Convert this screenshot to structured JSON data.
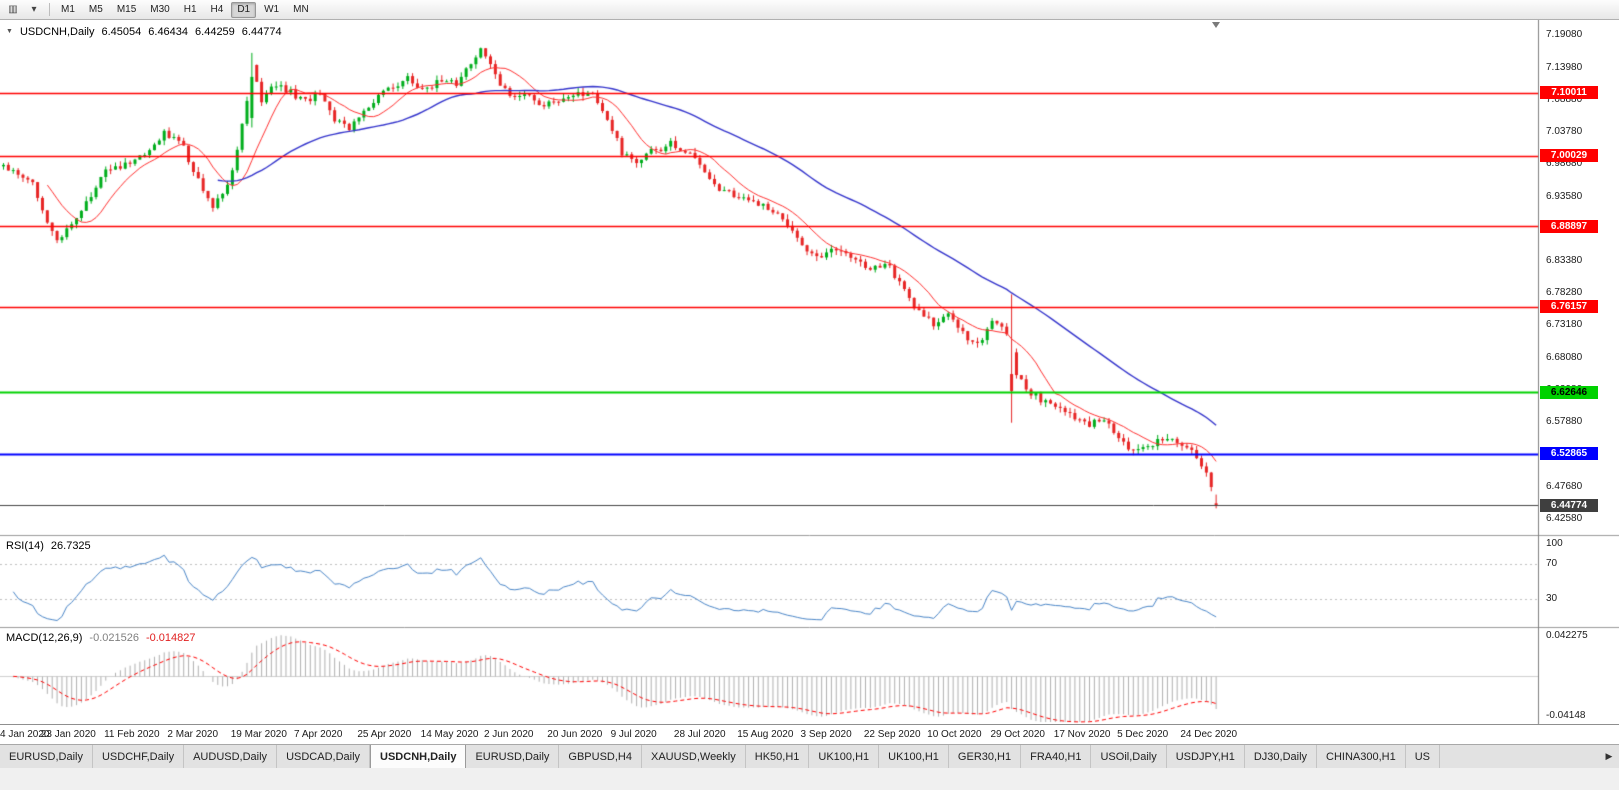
{
  "toolbar": {
    "icons": [
      {
        "name": "chart-window-icon",
        "glyph": "▥"
      },
      {
        "name": "dropdown-caret-icon",
        "glyph": "▾"
      }
    ],
    "timeframes": [
      "M1",
      "M5",
      "M15",
      "M30",
      "H1",
      "H4",
      "D1",
      "W1",
      "MN"
    ],
    "active_timeframe": "D1"
  },
  "chart_header": {
    "collapse_icon": "▼",
    "symbol": "USDCNH,Daily",
    "open": "6.45054",
    "high": "6.46434",
    "low": "6.44259",
    "close": "6.44774"
  },
  "levels": [
    {
      "value": "7.10011",
      "price": 7.10011,
      "color": "#ff0000",
      "text_color": "#ffffff"
    },
    {
      "value": "7.00029",
      "price": 7.00029,
      "color": "#ff0000",
      "text_color": "#ffffff"
    },
    {
      "value": "6.88897",
      "price": 6.88897,
      "color": "#ff0000",
      "text_color": "#ffffff"
    },
    {
      "value": "6.76157",
      "price": 6.76157,
      "color": "#ff0000",
      "text_color": "#ffffff"
    },
    {
      "value": "6.62646",
      "price": 6.62646,
      "color": "#00d200",
      "text_color": "#000000"
    },
    {
      "value": "6.52865",
      "price": 6.52865,
      "color": "#0000ff",
      "text_color": "#ffffff"
    }
  ],
  "current_price": {
    "value": "6.44774",
    "price": 6.44774,
    "bg": "#3f3f3f",
    "text_color": "#ffffff"
  },
  "price_scale": {
    "ticks": [
      "7.19080",
      "7.13980",
      "7.08880",
      "7.03780",
      "6.98680",
      "6.93580",
      "6.88480",
      "6.83380",
      "6.78280",
      "6.73180",
      "6.68080",
      "6.62980",
      "6.57880",
      "6.52780",
      "6.47680",
      "6.42580"
    ]
  },
  "rsi": {
    "name": "RSI(14)",
    "value": "26.7325",
    "levels": [
      {
        "label": "100",
        "v": 100
      },
      {
        "label": "70",
        "v": 70
      },
      {
        "label": "30",
        "v": 30
      }
    ],
    "line_color": "#4a86c8"
  },
  "macd": {
    "name": "MACD(12,26,9)",
    "main_value": "-0.021526",
    "signal_value": "-0.014827",
    "scale_top": "0.042275",
    "scale_bottom": "-0.04148",
    "histogram_color": "#b0b0b0",
    "signal_color": "#ff0000"
  },
  "date_axis": {
    "labels": [
      "4 Jan 2020",
      "23 Jan 2020",
      "11 Feb 2020",
      "2 Mar 2020",
      "19 Mar 2020",
      "7 Apr 2020",
      "25 Apr 2020",
      "14 May 2020",
      "2 Jun 2020",
      "20 Jun 2020",
      "9 Jul 2020",
      "28 Jul 2020",
      "15 Aug 2020",
      "3 Sep 2020",
      "22 Sep 2020",
      "10 Oct 2020",
      "29 Oct 2020",
      "17 Nov 2020",
      "5 Dec 2020",
      "24 Dec 2020"
    ],
    "bars_per_label": 13
  },
  "tabs": {
    "items": [
      "EURUSD,Daily",
      "USDCHF,Daily",
      "AUDUSD,Daily",
      "USDCAD,Daily",
      "USDCNH,Daily",
      "EURUSD,Daily",
      "GBPUSD,H4",
      "XAUUSD,Weekly",
      "HK50,H1",
      "UK100,H1",
      "UK100,H1",
      "GER30,H1",
      "FRA40,H1",
      "USOil,Daily",
      "USDJPY,H1",
      "DJ30,Daily",
      "CHINA300,H1",
      "US"
    ],
    "active_index": 4,
    "scroll_icon": "▶"
  },
  "chart_data": {
    "type": "candlestick",
    "symbol": "USDCNH",
    "timeframe": "Daily",
    "title": "USDCNH,Daily",
    "bars": 250,
    "ylim": [
      6.402,
      7.215
    ],
    "up_color": "#00ae1c",
    "down_color": "#e72525",
    "sma_fast_color": "#ff3030",
    "sma_slow_color": "#3434cc",
    "anchors": [
      [
        0,
        6.985
      ],
      [
        6,
        6.955
      ],
      [
        11,
        6.862
      ],
      [
        15,
        6.905
      ],
      [
        21,
        6.975
      ],
      [
        26,
        6.988
      ],
      [
        31,
        7.015
      ],
      [
        33,
        7.038
      ],
      [
        37,
        7.012
      ],
      [
        40,
        6.962
      ],
      [
        43,
        6.918
      ],
      [
        46,
        6.955
      ],
      [
        48,
        7.005
      ],
      [
        50,
        7.09
      ],
      [
        51,
        7.14
      ],
      [
        53,
        7.09
      ],
      [
        55,
        7.115
      ],
      [
        59,
        7.1
      ],
      [
        62,
        7.085
      ],
      [
        65,
        7.098
      ],
      [
        68,
        7.06
      ],
      [
        71,
        7.045
      ],
      [
        74,
        7.075
      ],
      [
        77,
        7.095
      ],
      [
        80,
        7.11
      ],
      [
        83,
        7.126
      ],
      [
        86,
        7.105
      ],
      [
        90,
        7.12
      ],
      [
        93,
        7.115
      ],
      [
        96,
        7.148
      ],
      [
        98,
        7.17
      ],
      [
        101,
        7.126
      ],
      [
        104,
        7.09
      ],
      [
        107,
        7.1
      ],
      [
        110,
        7.076
      ],
      [
        114,
        7.086
      ],
      [
        117,
        7.1
      ],
      [
        121,
        7.096
      ],
      [
        124,
        7.06
      ],
      [
        127,
        7.006
      ],
      [
        130,
        6.99
      ],
      [
        133,
        7.006
      ],
      [
        137,
        7.02
      ],
      [
        141,
        7.002
      ],
      [
        144,
        6.976
      ],
      [
        147,
        6.95
      ],
      [
        151,
        6.936
      ],
      [
        154,
        6.925
      ],
      [
        158,
        6.916
      ],
      [
        161,
        6.89
      ],
      [
        164,
        6.856
      ],
      [
        167,
        6.84
      ],
      [
        171,
        6.856
      ],
      [
        174,
        6.836
      ],
      [
        178,
        6.82
      ],
      [
        181,
        6.832
      ],
      [
        184,
        6.8
      ],
      [
        187,
        6.76
      ],
      [
        191,
        6.732
      ],
      [
        194,
        6.756
      ],
      [
        197,
        6.72
      ],
      [
        200,
        6.7
      ],
      [
        203,
        6.736
      ],
      [
        206,
        6.72
      ],
      [
        208,
        6.652
      ],
      [
        211,
        6.625
      ],
      [
        214,
        6.61
      ],
      [
        217,
        6.606
      ],
      [
        220,
        6.586
      ],
      [
        223,
        6.576
      ],
      [
        226,
        6.586
      ],
      [
        229,
        6.556
      ],
      [
        232,
        6.53
      ],
      [
        235,
        6.54
      ],
      [
        239,
        6.556
      ],
      [
        242,
        6.546
      ],
      [
        245,
        6.526
      ],
      [
        247,
        6.5
      ],
      [
        249,
        6.448
      ]
    ],
    "overrides": [
      {
        "i": 51,
        "o": 7.06,
        "h": 7.163,
        "l": 7.045,
        "c": 7.125
      },
      {
        "i": 207,
        "o": 6.655,
        "h": 6.781,
        "l": 6.578,
        "c": 6.628
      }
    ],
    "last_bar": {
      "o": 6.45054,
      "h": 6.46434,
      "l": 6.44259,
      "c": 6.44774
    },
    "indicators": {
      "sma_fast_period": 10,
      "sma_slow_period": 45,
      "rsi_period": 14,
      "rsi_last": 26.7325,
      "macd_params": [
        12,
        26,
        9
      ],
      "macd_last": -0.021526,
      "macd_signal_last": -0.014827
    }
  }
}
